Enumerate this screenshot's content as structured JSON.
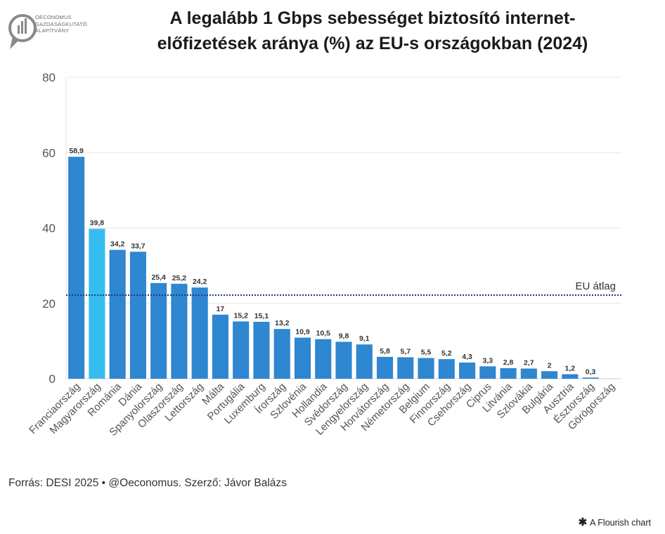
{
  "logo": {
    "lines": [
      "OECONOMUS",
      "GAZDASÁGKUTATÓ",
      "ALAPÍTVÁNY"
    ]
  },
  "title": {
    "line1": "A legalább 1 Gbps sebességet biztosító internet-",
    "line2": "előfizetések aránya (%) az EU-s országokban (2024)"
  },
  "source": "Forrás: DESI 2025 • @Oeconomus. Szerző: Jávor Balázs",
  "credit": "A Flourish chart",
  "colors": {
    "bar": "#2f86d1",
    "highlight": "#35bdf0",
    "eu_line": "#1f3a7a",
    "grid": "#e6e6e6",
    "axis_text": "#555555"
  },
  "chart_data": {
    "type": "bar",
    "ylim": [
      0,
      80
    ],
    "yticks": [
      0,
      20,
      40,
      60,
      80
    ],
    "grid": true,
    "categories": [
      "Franciaország",
      "Magyarország",
      "Románia",
      "Dánia",
      "Spanyolország",
      "Olaszország",
      "Lettország",
      "Málta",
      "Portugália",
      "Luxemburg",
      "Írország",
      "Szlovénia",
      "Hollandia",
      "Svédország",
      "Lengyelország",
      "Horvátország",
      "Németország",
      "Belgium",
      "Finnország",
      "Csehország",
      "Ciprus",
      "Litvánia",
      "Szlovákia",
      "Bulgária",
      "Ausztria",
      "Észtország",
      "Görögország"
    ],
    "values": [
      58.9,
      39.8,
      34.2,
      33.7,
      25.4,
      25.2,
      24.2,
      17,
      15.2,
      15.1,
      13.2,
      10.9,
      10.5,
      9.8,
      9.1,
      5.8,
      5.7,
      5.5,
      5.2,
      4.3,
      3.3,
      2.8,
      2.7,
      2,
      1.2,
      0.3,
      null
    ],
    "value_labels": [
      "58,9",
      "39,8",
      "34,2",
      "33,7",
      "25,4",
      "25,2",
      "24,2",
      "17",
      "15,2",
      "15,1",
      "13,2",
      "10,9",
      "10,5",
      "9,8",
      "9,1",
      "5,8",
      "5,7",
      "5,5",
      "5,2",
      "4,3",
      "3,3",
      "2,8",
      "2,7",
      "2",
      "1,2",
      "0,3",
      ""
    ],
    "highlight_category": "Magyarország",
    "reference_line": {
      "label": "EU átlag",
      "value": 22.2
    }
  }
}
